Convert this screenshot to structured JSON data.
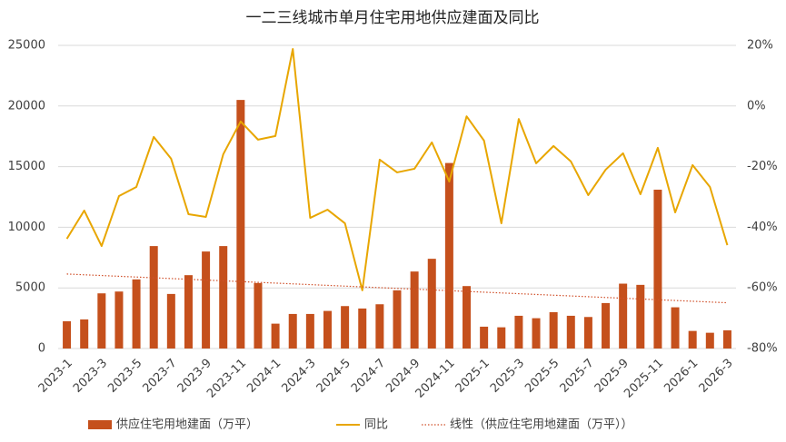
{
  "chart_data": {
    "type": "bar_line",
    "title": "一二三线城市单月住宅用地供应建面及同比",
    "categories": [
      "2023-1",
      null,
      "2023-3",
      null,
      "2023-5",
      null,
      "2023-7",
      null,
      "2023-9",
      null,
      "2023-11",
      null,
      "2024-1",
      null,
      "2024-3",
      null,
      "2024-5",
      null,
      "2024-7",
      null,
      "2024-9",
      null,
      "2024-11",
      null,
      "2025-1",
      null,
      "2025-3",
      null,
      "2025-5",
      null,
      "2025-7",
      null,
      "2025-9",
      null,
      "2025-11",
      null,
      "2026-1",
      null,
      "2026-3"
    ],
    "series": [
      {
        "name": "供应住宅用地建面（万平）",
        "color": "#c5501c",
        "kind": "bar",
        "values": [
          2250,
          2400,
          4550,
          4700,
          5700,
          8450,
          4500,
          6050,
          8000,
          8450,
          20500,
          5400,
          2050,
          2850,
          2850,
          3100,
          3500,
          3300,
          3650,
          4800,
          6350,
          7400,
          15300,
          5150,
          1800,
          1750,
          2700,
          2500,
          3000,
          2700,
          2600,
          3750,
          5350,
          5250,
          13100,
          3400,
          1450,
          1300,
          1500
        ]
      },
      {
        "name": "同比",
        "color": "#e8a600",
        "kind": "line",
        "axis": "y2",
        "values": [
          -43.8,
          -34.5,
          -46.2,
          -29.7,
          -26.7,
          -10.2,
          -17.4,
          -35.7,
          -36.6,
          -15.9,
          -5.1,
          -11.1,
          -9.9,
          18.8,
          -36.9,
          -34.2,
          -38.7,
          -60.8,
          -17.7,
          -21.9,
          -20.7,
          -12,
          -24.9,
          -3.4,
          -11.4,
          -38.7,
          -4.3,
          -18.9,
          -13.2,
          -18.3,
          -29.4,
          -21,
          -15.6,
          -29.1,
          -13.8,
          -35.1,
          -19.5,
          -26.7,
          -45.9
        ]
      }
    ],
    "trendline": {
      "name": "线性（供应住宅用地建面（万平））",
      "color": "#d0502a"
    },
    "ylim": [
      0,
      25000
    ],
    "yticks": [
      0,
      5000,
      10000,
      15000,
      20000,
      25000
    ],
    "y2lim": [
      -80,
      20
    ],
    "y2ticks": [
      {
        "value": -80,
        "label": "-80%"
      },
      {
        "value": -60,
        "label": "-60%"
      },
      {
        "value": -40,
        "label": "-40%"
      },
      {
        "value": -20,
        "label": "-20%"
      },
      {
        "value": 0,
        "label": "0%"
      },
      {
        "value": 20,
        "label": "20%"
      }
    ],
    "grid": true,
    "legend": "bottom"
  }
}
